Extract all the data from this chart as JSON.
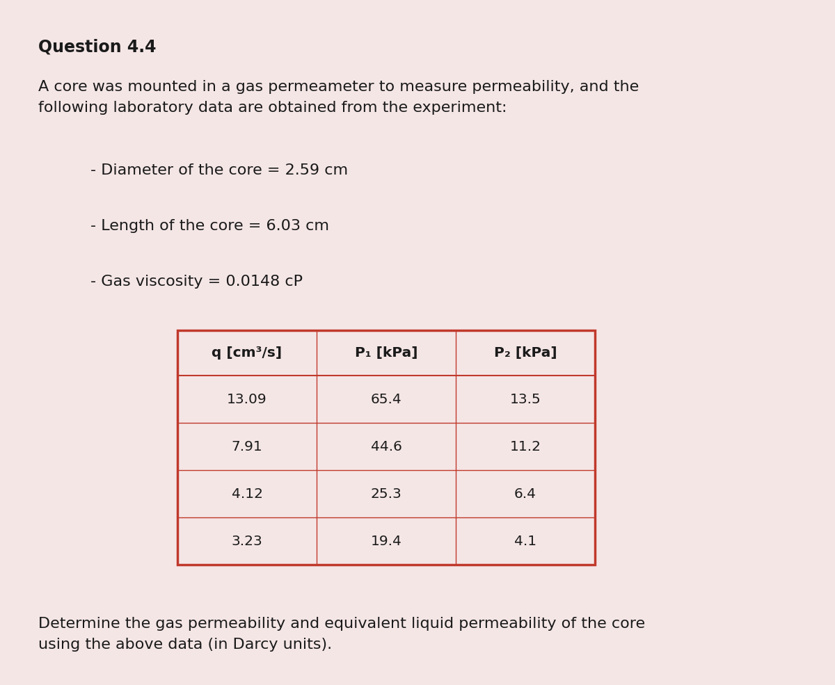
{
  "background_color": "#f5e6e6",
  "title": "Question 4.4",
  "intro_text": "A core was mounted in a gas permeameter to measure permeability, and the\nfollowing laboratory data are obtained from the experiment:",
  "bullet1": "- Diameter of the core = 2.59 cm",
  "bullet2": "- Length of the core = 6.03 cm",
  "bullet3": "- Gas viscosity = 0.0148 cP",
  "col_headers": [
    "q [cm³/s]",
    "P₁ [kPa]",
    "P₂ [kPa]"
  ],
  "table_data": [
    [
      "13.09",
      "65.4",
      "13.5"
    ],
    [
      "7.91",
      "44.6",
      "11.2"
    ],
    [
      "4.12",
      "25.3",
      "6.4"
    ],
    [
      "3.23",
      "19.4",
      "4.1"
    ]
  ],
  "footer_text": "Determine the gas permeability and equivalent liquid permeability of the core\nusing the above data (in Darcy units).",
  "table_border_color": "#c0392b",
  "table_line_color": "#c0392b",
  "text_color": "#1a1a1a",
  "body_font_size": 16,
  "title_font_size": 17,
  "table_font_size": 14.5
}
